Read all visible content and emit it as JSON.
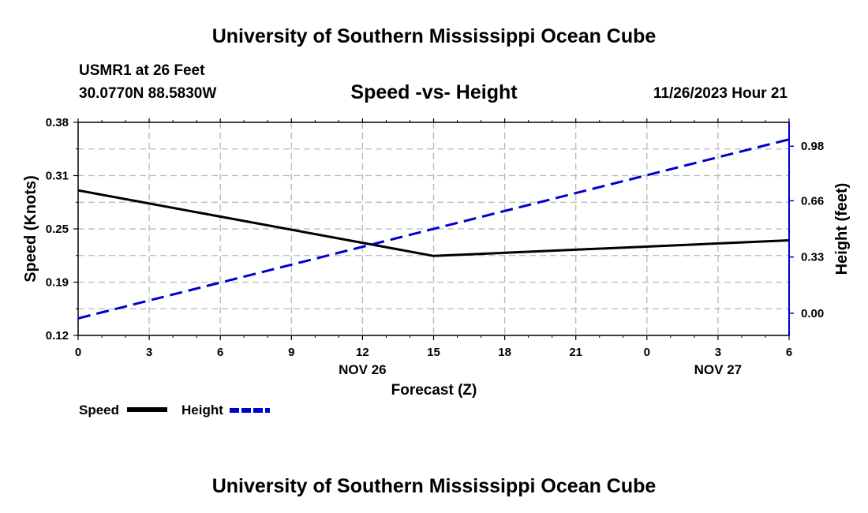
{
  "header": {
    "title": "University of Southern Mississippi Ocean Cube",
    "station": "USMR1 at 26 Feet",
    "coords": "30.0770N  88.5830W",
    "datetime": "11/26/2023 Hour 21"
  },
  "footer": {
    "title": "University of Southern Mississippi Ocean Cube"
  },
  "chart_data": {
    "type": "line",
    "title": "Speed -vs- Height",
    "xlabel": "Forecast (Z)",
    "ylabel_left": "Speed (Knots)",
    "ylabel_right": "Height (feet)",
    "x": [
      0,
      3,
      6,
      9,
      12,
      15,
      18,
      21,
      24,
      27,
      30
    ],
    "x_tick_labels": [
      "0",
      "3",
      "6",
      "9",
      "12",
      "15",
      "18",
      "21",
      "0",
      "3",
      "6"
    ],
    "x_day_labels": [
      {
        "x": 12,
        "label": "NOV 26"
      },
      {
        "x": 27,
        "label": "NOV 27"
      }
    ],
    "xlim": [
      0,
      30
    ],
    "ylim_left": [
      0.12,
      0.38
    ],
    "yticks_left": [
      "0.12",
      "0.19",
      "0.25",
      "0.31",
      "0.38"
    ],
    "ylim_right": [
      -0.13,
      1.12
    ],
    "yticks_right": [
      "0.00",
      "0.33",
      "0.66",
      "0.98"
    ],
    "grid": true,
    "series": [
      {
        "name": "Speed",
        "axis": "left",
        "color": "#000000",
        "dash": "solid",
        "x": [
          0,
          15,
          30
        ],
        "values": [
          0.297,
          0.217,
          0.236
        ]
      },
      {
        "name": "Height",
        "axis": "right",
        "color": "#0000cc",
        "dash": "dashed",
        "x": [
          0,
          30
        ],
        "values": [
          -0.03,
          1.02
        ]
      }
    ],
    "legend": {
      "position": "bottom-left",
      "items": [
        {
          "label": "Speed",
          "color": "#000000",
          "dash": "solid"
        },
        {
          "label": "Height",
          "color": "#0000cc",
          "dash": "dashed"
        }
      ]
    }
  }
}
